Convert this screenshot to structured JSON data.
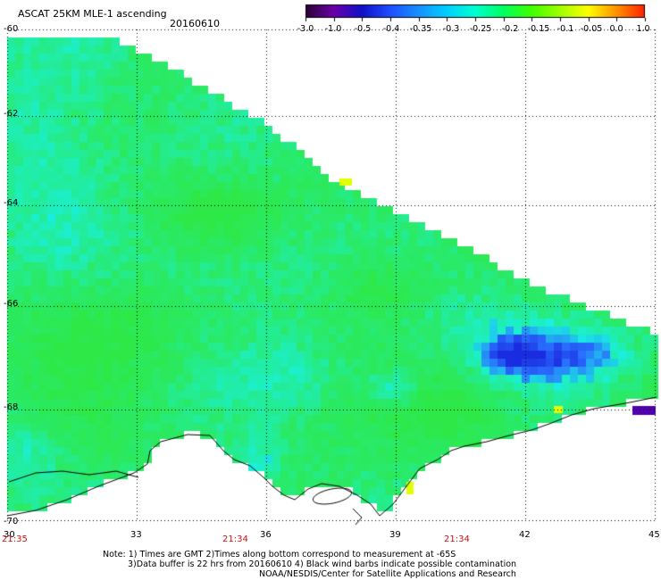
{
  "header": {
    "title": "ASCAT 25KM MLE-1 ascending",
    "date": "20160610"
  },
  "colorbar": {
    "ticks": [
      "-3.0",
      "-1.0",
      "-0.5",
      "-0.4",
      "-0.35",
      "-0.3",
      "-0.25",
      "-0.2",
      "-0.15",
      "-0.1",
      "-0.05",
      "0.0",
      "1.0"
    ],
    "colors": [
      "#2a0033",
      "#6a00a8",
      "#1010c8",
      "#1e50ff",
      "#1890ff",
      "#00d0ff",
      "#00ffd0",
      "#00ff60",
      "#40ff00",
      "#a0ff00",
      "#ffff00",
      "#ff9000",
      "#ff2000"
    ]
  },
  "map": {
    "x_axis": {
      "min": 30,
      "max": 45,
      "ticks": [
        "30",
        "33",
        "36",
        "39",
        "42",
        "45"
      ]
    },
    "y_axis": {
      "min": -70,
      "max": -60,
      "ticks": [
        "-60",
        "-62",
        "-64",
        "-66",
        "-68",
        "-70"
      ]
    },
    "grid": "dotted",
    "colors": {
      "field_green": "#2ee847",
      "field_cyan": "#19f0e0",
      "field_blue": "#2a70ff",
      "field_dark_blue": "#1a2ce0",
      "field_yellow": "#e0ff00",
      "field_purple": "#5000b0",
      "coastline": "#000000",
      "time_label": "#d01010"
    }
  },
  "times": [
    "21:35",
    "21:34",
    "21:34"
  ],
  "footer": {
    "note_line1": "Note: 1) Times are GMT 2)Times along bottom correspond to measurement at -65S",
    "note_line2": "3)Data buffer is 22 hrs from 20160610 4) Black wind barbs indicate possible contamination",
    "credit": "NOAA/NESDIS/Center for Satellite Applications and Research"
  }
}
